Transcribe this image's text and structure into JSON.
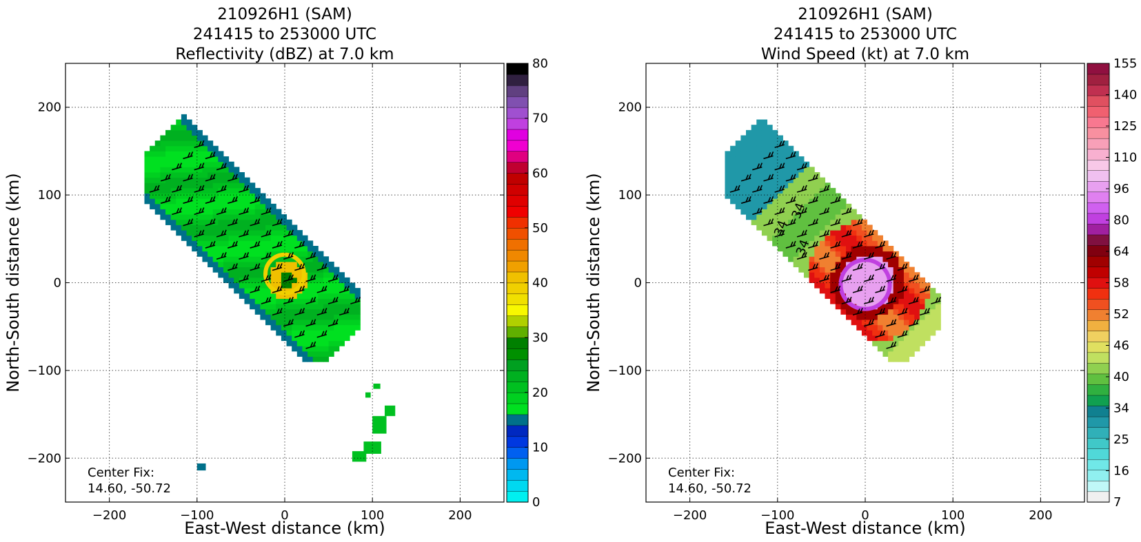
{
  "figure": {
    "panels": [
      {
        "title_lines": [
          "210926H1 (SAM)",
          "241415 to 253000 UTC",
          "Reflectivity (dBZ) at 7.0 km"
        ],
        "xlabel": "East-West distance (km)",
        "ylabel": "North-South distance (km)",
        "x_ticks": [
          "−200",
          "−100",
          "0",
          "100",
          "200"
        ],
        "y_ticks": [
          "200",
          "100",
          "0",
          "−100",
          "−200"
        ],
        "center_fix_label": "Center Fix:",
        "center_fix_value": "14.60, -50.72",
        "colorbar_labels": [
          "80",
          "70",
          "60",
          "50",
          "40",
          "30",
          "20",
          "10",
          "0"
        ],
        "colorbar_colors": [
          "#00f0f0",
          "#00d8f0",
          "#00b8f0",
          "#0098f0",
          "#0060f0",
          "#0038e0",
          "#0028c0",
          "#00708a",
          "#00e020",
          "#00d020",
          "#00c020",
          "#00b020",
          "#00a020",
          "#009000",
          "#008000",
          "#60b000",
          "#b0d000",
          "#f8f800",
          "#f0e000",
          "#f0d000",
          "#f0c000",
          "#f0a000",
          "#f08800",
          "#f07000",
          "#f05000",
          "#f03000",
          "#f00000",
          "#e00000",
          "#d00000",
          "#c00000",
          "#c00030",
          "#e00080",
          "#f000d0",
          "#e000e0",
          "#c040e0",
          "#a050d0",
          "#8050b0",
          "#604080",
          "#302040",
          "#000000"
        ]
      },
      {
        "title_lines": [
          "210926H1 (SAM)",
          "241415 to 253000 UTC",
          "Wind Speed (kt) at 7.0 km"
        ],
        "xlabel": "East-West distance (km)",
        "ylabel": "North-South distance (km)",
        "x_ticks": [
          "−200",
          "−100",
          "0",
          "100",
          "200"
        ],
        "y_ticks": [
          "200",
          "100",
          "0",
          "−100",
          "−200"
        ],
        "center_fix_label": "Center Fix:",
        "center_fix_value": "14.60, -50.72",
        "colorbar_labels": [
          "155",
          "140",
          "125",
          "110",
          "96",
          "80",
          "64",
          "58",
          "52",
          "46",
          "40",
          "34",
          "25",
          "16",
          "7"
        ],
        "colorbar_colors": [
          "#f0f0f0",
          "#c0f8f8",
          "#90f0f0",
          "#70e8e8",
          "#50d8d8",
          "#40c8c8",
          "#30b0b8",
          "#2098a8",
          "#108090",
          "#10a050",
          "#30b040",
          "#60c040",
          "#90d050",
          "#c0e060",
          "#e0e060",
          "#f0d060",
          "#f0b040",
          "#f08030",
          "#f05020",
          "#f03010",
          "#e01010",
          "#c00000",
          "#a00000",
          "#800010",
          "#801040",
          "#a020a0",
          "#c040e0",
          "#d060f0",
          "#e080f0",
          "#e8a0f0",
          "#f0c0f0",
          "#f8c8e8",
          "#f8b0d0",
          "#f8a0b8",
          "#f890a0",
          "#f87890",
          "#f06070",
          "#e05060",
          "#c03050",
          "#a02040",
          "#901040"
        ],
        "contour_label": "34"
      }
    ]
  },
  "chart_data": [
    {
      "type": "heatmap",
      "title": "210926H1 (SAM) 241415 to 253000 UTC Reflectivity (dBZ) at 7.0 km",
      "xlabel": "East-West distance (km)",
      "ylabel": "North-South distance (km)",
      "xlim": [
        -250,
        250
      ],
      "ylim": [
        -250,
        250
      ],
      "colorbar_range": [
        0,
        80
      ],
      "colorbar_ticks": [
        0,
        10,
        20,
        30,
        40,
        50,
        60,
        70,
        80
      ],
      "units": "dBZ",
      "center_fix": [
        14.6,
        -50.72
      ],
      "grid": true
    },
    {
      "type": "heatmap",
      "title": "210926H1 (SAM) 241415 to 253000 UTC Wind Speed (kt) at 7.0 km",
      "xlabel": "East-West distance (km)",
      "ylabel": "North-South distance (km)",
      "xlim": [
        -250,
        250
      ],
      "ylim": [
        -250,
        250
      ],
      "colorbar_ticks": [
        7,
        16,
        25,
        34,
        40,
        46,
        52,
        58,
        64,
        80,
        96,
        110,
        125,
        140,
        155
      ],
      "units": "kt",
      "contour_value": 34,
      "center_fix": [
        14.6,
        -50.72
      ],
      "grid": true
    }
  ]
}
